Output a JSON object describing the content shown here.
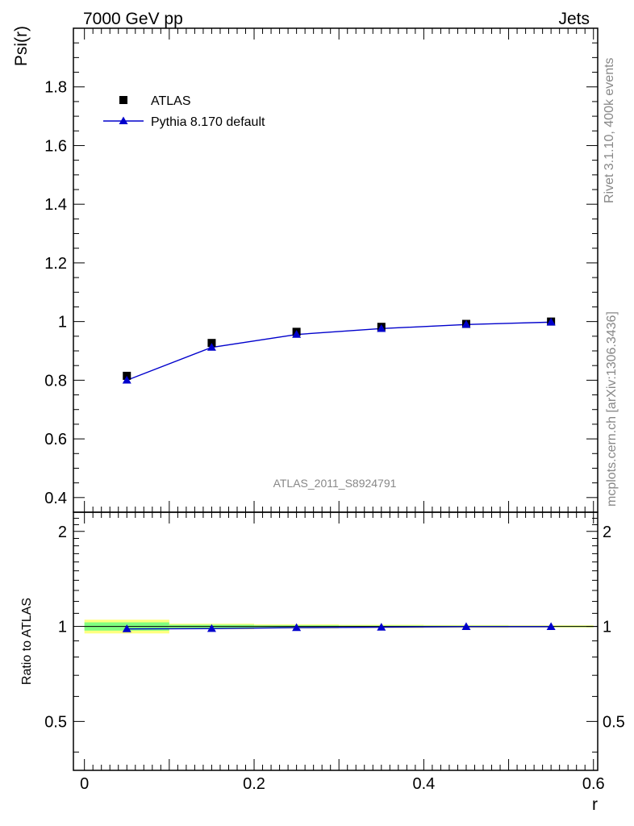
{
  "header": {
    "left_label": "7000 GeV pp",
    "right_label": "Jets"
  },
  "side_text": {
    "rivet": "Rivet 3.1.10,  400k events",
    "mcplots": "mcplots.cern.ch [arXiv:1306.3436]"
  },
  "chart_data": [
    {
      "type": "scatter",
      "ylabel": "Psi(r)",
      "analysis_label": "ATLAS_2011_S8924791",
      "ylim": [
        0.35,
        2.0
      ],
      "xlim": [
        -0.013,
        0.605
      ],
      "y_ticks": [
        0.4,
        0.6,
        0.8,
        1,
        1.2,
        1.4,
        1.6,
        1.8
      ],
      "y_tick_labels": [
        "0.4",
        "0.6",
        "0.8",
        "1",
        "1.2",
        "1.4",
        "1.6",
        "1.8"
      ],
      "legend_placement": "top-left",
      "x": [
        0.05,
        0.15,
        0.25,
        0.35,
        0.45,
        0.55
      ],
      "series": [
        {
          "name": "ATLAS",
          "marker": "square",
          "color": "#000000",
          "values": [
            0.815,
            0.927,
            0.965,
            0.982,
            0.992,
            1.0
          ]
        },
        {
          "name": "Pythia 8.170 default",
          "marker": "triangle",
          "line": true,
          "color": "#0000cc",
          "values": [
            0.8,
            0.912,
            0.956,
            0.976,
            0.99,
            0.998
          ]
        }
      ]
    },
    {
      "type": "line",
      "ylabel": "Ratio to ATLAS",
      "xlabel": "r",
      "ylim": [
        0.35,
        2.3
      ],
      "xlim": [
        -0.013,
        0.605
      ],
      "y_ticks": [
        0.5,
        1,
        2
      ],
      "y_tick_labels": [
        "0.5",
        "1",
        "2"
      ],
      "x_ticks": [
        0,
        0.2,
        0.4,
        0.6
      ],
      "x_tick_labels": [
        "0",
        "0.2",
        "0.4",
        "0.6"
      ],
      "x": [
        0.05,
        0.15,
        0.25,
        0.35,
        0.45,
        0.55
      ],
      "uncertainty_bands": {
        "bin_edges": [
          0,
          0.1,
          0.2,
          0.3,
          0.4,
          0.5,
          0.6
        ],
        "outer_yellow_halfwidth": [
          0.05,
          0.02,
          0.015,
          0.012,
          0.01,
          0.008
        ],
        "inner_green_halfwidth": [
          0.03,
          0.012,
          0.008,
          0.006,
          0.005,
          0.004
        ],
        "yellow_color": "#ffff80",
        "green_color": "#80ff80"
      },
      "series": [
        {
          "name": "Pythia 8.170 default",
          "marker": "triangle",
          "color": "#0000cc",
          "values": [
            0.982,
            0.984,
            0.991,
            0.994,
            0.998,
            0.998
          ]
        }
      ]
    }
  ]
}
